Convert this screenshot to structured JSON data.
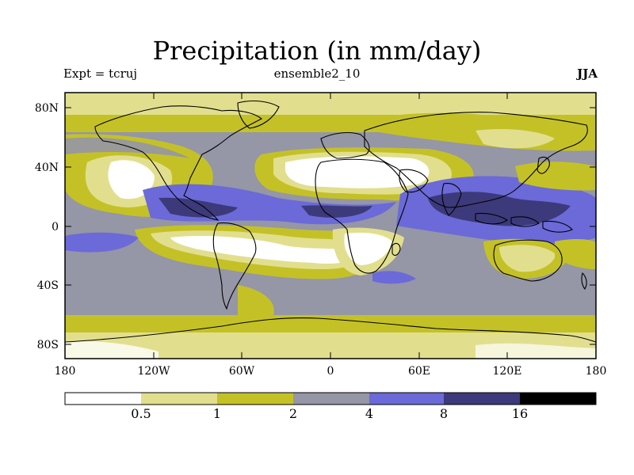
{
  "title": "Precipitation (in mm/day)",
  "experiment": "Expt = tcruj",
  "ensemble": "ensemble2_10",
  "season": "JJA",
  "lat_labels": [
    "80N",
    "40N",
    "0",
    "40S",
    "80S"
  ],
  "lon_labels": [
    "180",
    "120W",
    "60W",
    "0",
    "60E",
    "120E",
    "180"
  ],
  "colorbar": {
    "thresholds": [
      "0.5",
      "1",
      "2",
      "4",
      "8",
      "16"
    ],
    "colors": [
      "#ffffff",
      "#e1df8e",
      "#c4c127",
      "#9596a6",
      "#6b6ad8",
      "#3c3a7b",
      "#000000"
    ]
  }
}
